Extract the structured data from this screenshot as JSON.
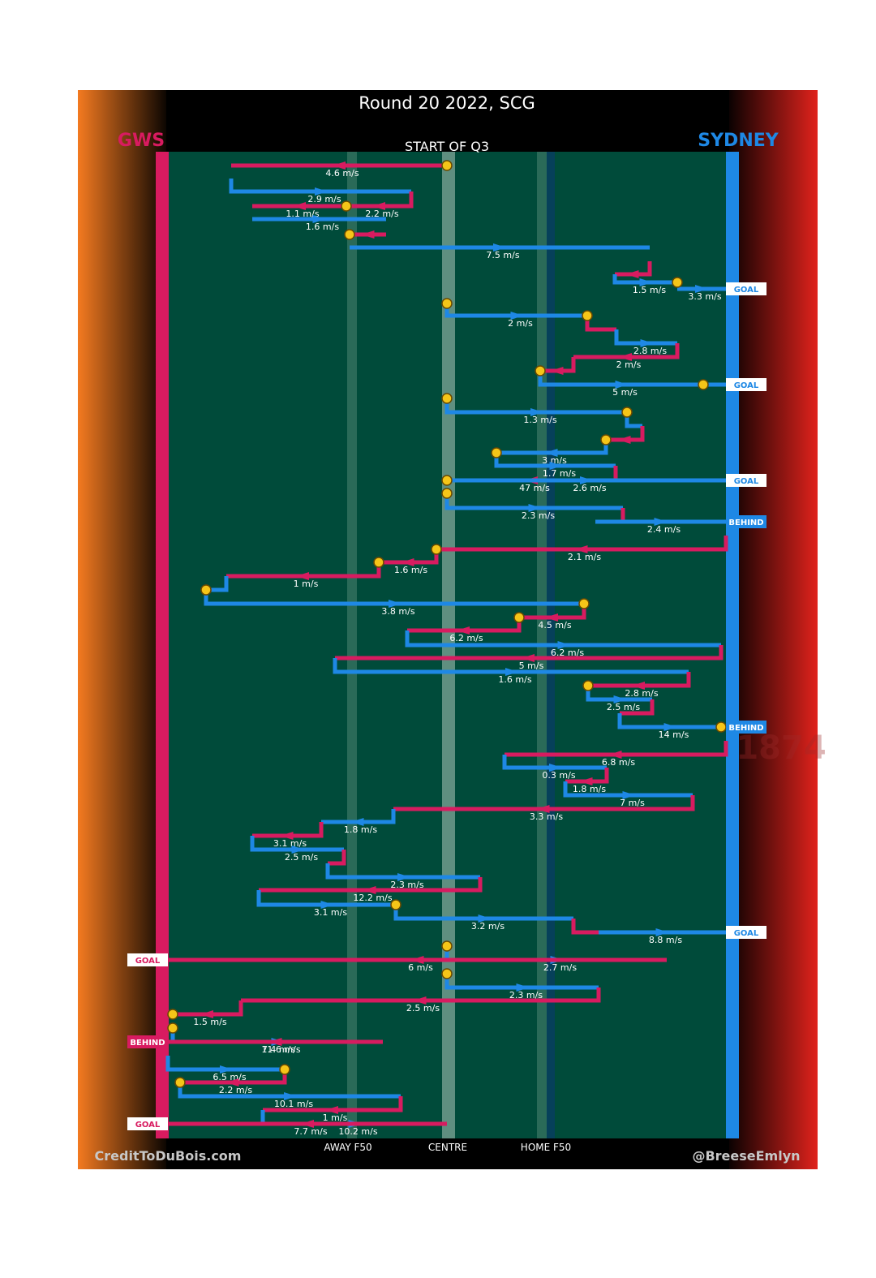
{
  "header": {
    "title": "Round 20 2022, SCG",
    "section_label": "START OF Q3",
    "away_team": "GWS",
    "home_team": "SYDNEY",
    "footer_left": "CreditToDuBois.com",
    "footer_right": "@BreeseEmlyn",
    "watermark_year": "1874"
  },
  "colors": {
    "away_team": "#d81b60",
    "home_team": "#1e88e5",
    "field": "#004b3a",
    "turnover_marker": "#f5c518",
    "result_label_bg": "#ffffff"
  },
  "chart_data": {
    "type": "line",
    "description_of_axes": "horizontal = field position from GWS goal (left) to Sydney goal (right); vertical = chain order, top to bottom",
    "x_ticks": [
      "AWAY F50",
      "CENTRE",
      "HOME F50"
    ],
    "segments": [
      {
        "team": "GWS",
        "y1": 204,
        "x1": 551,
        "y2": 204,
        "x2": 285,
        "speed": "4.6 m/s",
        "turnover_start": true
      },
      {
        "team": "SYD",
        "y1": 220,
        "x1": 285,
        "y2": 236,
        "x2": 507,
        "speed": "2.9 m/s"
      },
      {
        "team": "GWS",
        "y1": 236,
        "x1": 507,
        "y2": 254,
        "x2": 427,
        "speed": "2.2 m/s",
        "turnover_end": true
      },
      {
        "team": "GWS",
        "y1": 254,
        "x1": 427,
        "y2": 254,
        "x2": 311,
        "speed": "1.1 m/s"
      },
      {
        "team": "SYD",
        "y1": 270,
        "x1": 311,
        "y2": 270,
        "x2": 476,
        "speed": "1.6 m/s"
      },
      {
        "team": "GWS",
        "y1": 289,
        "x1": 476,
        "y2": 289,
        "x2": 431,
        "speed": "",
        "turnover_end": true
      },
      {
        "team": "SYD",
        "y1": 305,
        "x1": 431,
        "y2": 305,
        "x2": 801,
        "speed": "7.5 m/s"
      },
      {
        "team": "GWS",
        "y1": 322,
        "x1": 801,
        "y2": 338,
        "x2": 758,
        "speed": ""
      },
      {
        "team": "SYD",
        "y1": 338,
        "x1": 758,
        "y2": 348,
        "x2": 835,
        "speed": "1.5 m/s",
        "turnover_end": true
      },
      {
        "team": "SYD",
        "y1": 356,
        "x1": 835,
        "y2": 356,
        "x2": 895,
        "speed": "3.3 m/s",
        "result": "GOAL"
      },
      {
        "team": "SYD",
        "y1": 374,
        "x1": 551,
        "y2": 389,
        "x2": 724,
        "speed": "2 m/s",
        "turnover_start": true,
        "turnover_end": true
      },
      {
        "team": "GWS",
        "y1": 389,
        "x1": 724,
        "y2": 406,
        "x2": 760,
        "speed": ""
      },
      {
        "team": "SYD",
        "y1": 406,
        "x1": 760,
        "y2": 423,
        "x2": 835,
        "speed": "2.8 m/s"
      },
      {
        "team": "GWS",
        "y1": 423,
        "x1": 835,
        "y2": 440,
        "x2": 707,
        "speed": "2 m/s"
      },
      {
        "team": "GWS",
        "y1": 440,
        "x1": 707,
        "y2": 457,
        "x2": 666,
        "speed": "",
        "turnover_end": true
      },
      {
        "team": "SYD",
        "y1": 457,
        "x1": 666,
        "y2": 474,
        "x2": 867,
        "speed": "5 m/s",
        "turnover_end": true
      },
      {
        "team": "SYD",
        "y1": 474,
        "x1": 867,
        "y2": 474,
        "x2": 895,
        "speed": "",
        "result": "GOAL"
      },
      {
        "team": "SYD",
        "y1": 491,
        "x1": 551,
        "y2": 508,
        "x2": 773,
        "speed": "1.3 m/s",
        "turnover_start": true,
        "turnover_end": true
      },
      {
        "team": "SYD",
        "y1": 508,
        "x1": 773,
        "y2": 525,
        "x2": 792,
        "speed": ""
      },
      {
        "team": "GWS",
        "y1": 525,
        "x1": 792,
        "y2": 542,
        "x2": 747,
        "speed": "",
        "turnover_end": true
      },
      {
        "team": "SYD",
        "y1": 542,
        "x1": 747,
        "y2": 558,
        "x2": 612,
        "speed": "3 m/s"
      },
      {
        "team": "SYD",
        "y1": 558,
        "x1": 612,
        "y2": 574,
        "x2": 759,
        "speed": "1.7 m/s",
        "turnover_start": true
      },
      {
        "team": "GWS",
        "y1": 574,
        "x1": 759,
        "y2": 592,
        "x2": 551,
        "speed": "47 m/s",
        "turnover_end": true
      },
      {
        "team": "SYD",
        "y1": 592,
        "x1": 551,
        "y2": 592,
        "x2": 895,
        "speed": "2.6 m/s",
        "result": "GOAL"
      },
      {
        "team": "SYD",
        "y1": 608,
        "x1": 551,
        "y2": 626,
        "x2": 768,
        "speed": "2.3 m/s",
        "turnover_start": true
      },
      {
        "team": "GWS",
        "y1": 626,
        "x1": 768,
        "y2": 643,
        "x2": 734,
        "speed": ""
      },
      {
        "team": "SYD",
        "y1": 643,
        "x1": 734,
        "y2": 643,
        "x2": 895,
        "speed": "2.4 m/s",
        "result": "BEHIND"
      },
      {
        "team": "GWS",
        "y1": 660,
        "x1": 895,
        "y2": 677,
        "x2": 538,
        "speed": "2.1 m/s",
        "turnover_end": true
      },
      {
        "team": "GWS",
        "y1": 677,
        "x1": 538,
        "y2": 693,
        "x2": 467,
        "speed": "1.6 m/s",
        "turnover_end": true
      },
      {
        "team": "GWS",
        "y1": 693,
        "x1": 467,
        "y2": 710,
        "x2": 279,
        "speed": "1 m/s"
      },
      {
        "team": "SYD",
        "y1": 710,
        "x1": 279,
        "y2": 727,
        "x2": 254,
        "speed": "",
        "turnover_end": true
      },
      {
        "team": "SYD",
        "y1": 727,
        "x1": 254,
        "y2": 744,
        "x2": 720,
        "speed": "3.8 m/s",
        "turnover_start": true,
        "turnover_end": true
      },
      {
        "team": "GWS",
        "y1": 744,
        "x1": 720,
        "y2": 761,
        "x2": 640,
        "speed": "4.5 m/s",
        "turnover_end": true
      },
      {
        "team": "GWS",
        "y1": 761,
        "x1": 640,
        "y2": 777,
        "x2": 502,
        "speed": "6.2 m/s"
      },
      {
        "team": "SYD",
        "y1": 777,
        "x1": 502,
        "y2": 795,
        "x2": 889,
        "speed": "6.2 m/s"
      },
      {
        "team": "GWS",
        "y1": 795,
        "x1": 889,
        "y2": 811,
        "x2": 413,
        "speed": "5 m/s"
      },
      {
        "team": "SYD",
        "y1": 811,
        "x1": 413,
        "y2": 828,
        "x2": 849,
        "speed": "1.6 m/s"
      },
      {
        "team": "GWS",
        "y1": 828,
        "x1": 849,
        "y2": 845,
        "x2": 725,
        "speed": "2.8 m/s",
        "turnover_end": true
      },
      {
        "team": "SYD",
        "y1": 845,
        "x1": 725,
        "y2": 862,
        "x2": 804,
        "speed": "2.5 m/s"
      },
      {
        "team": "GWS",
        "y1": 862,
        "x1": 804,
        "y2": 879,
        "x2": 764,
        "speed": ""
      },
      {
        "team": "SYD",
        "y1": 879,
        "x1": 764,
        "y2": 896,
        "x2": 889,
        "speed": "14 m/s",
        "turnover_end": true
      },
      {
        "team": "SYD",
        "y1": 896,
        "x1": 889,
        "y2": 896,
        "x2": 895,
        "speed": "",
        "result": "BEHIND"
      },
      {
        "team": "GWS",
        "y1": 913,
        "x1": 895,
        "y2": 930,
        "x2": 622,
        "speed": "6.8 m/s"
      },
      {
        "team": "SYD",
        "y1": 930,
        "x1": 622,
        "y2": 946,
        "x2": 748,
        "speed": "0.3 m/s"
      },
      {
        "team": "GWS",
        "y1": 946,
        "x1": 748,
        "y2": 963,
        "x2": 697,
        "speed": "1.8 m/s"
      },
      {
        "team": "SYD",
        "y1": 963,
        "x1": 697,
        "y2": 980,
        "x2": 854,
        "speed": "7 m/s"
      },
      {
        "team": "GWS",
        "y1": 980,
        "x1": 854,
        "y2": 997,
        "x2": 485,
        "speed": "3.3 m/s"
      },
      {
        "team": "SYD",
        "y1": 997,
        "x1": 485,
        "y2": 1013,
        "x2": 396,
        "speed": "1.8 m/s"
      },
      {
        "team": "GWS",
        "y1": 1013,
        "x1": 396,
        "y2": 1030,
        "x2": 311,
        "speed": "3.1 m/s"
      },
      {
        "team": "SYD",
        "y1": 1030,
        "x1": 311,
        "y2": 1047,
        "x2": 424,
        "speed": "2.5 m/s"
      },
      {
        "team": "GWS",
        "y1": 1047,
        "x1": 424,
        "y2": 1064,
        "x2": 404,
        "speed": ""
      },
      {
        "team": "SYD",
        "y1": 1064,
        "x1": 404,
        "y2": 1081,
        "x2": 592,
        "speed": "2.3 m/s"
      },
      {
        "team": "GWS",
        "y1": 1081,
        "x1": 592,
        "y2": 1097,
        "x2": 319,
        "speed": "12.2 m/s"
      },
      {
        "team": "SYD",
        "y1": 1097,
        "x1": 319,
        "y2": 1115,
        "x2": 488,
        "speed": "3.1 m/s",
        "turnover_end": true
      },
      {
        "team": "SYD",
        "y1": 1115,
        "x1": 488,
        "y2": 1132,
        "x2": 707,
        "speed": "3.2 m/s"
      },
      {
        "team": "GWS",
        "y1": 1132,
        "x1": 707,
        "y2": 1149,
        "x2": 738,
        "speed": ""
      },
      {
        "team": "SYD",
        "y1": 1149,
        "x1": 738,
        "y2": 1149,
        "x2": 895,
        "speed": "8.8 m/s",
        "result": "GOAL"
      },
      {
        "team": "SYD",
        "y1": 1166,
        "x1": 551,
        "y2": 1183,
        "x2": 822,
        "speed": "2.7 m/s",
        "turnover_start": true
      },
      {
        "team": "GWS",
        "y1": 1183,
        "x1": 822,
        "y2": 1183,
        "x2": 207,
        "speed": "6 m/s",
        "result": "GOAL"
      },
      {
        "team": "SYD",
        "y1": 1200,
        "x1": 551,
        "y2": 1217,
        "x2": 738,
        "speed": "2.3 m/s",
        "turnover_start": true
      },
      {
        "team": "GWS",
        "y1": 1217,
        "x1": 738,
        "y2": 1233,
        "x2": 297,
        "speed": "2.5 m/s"
      },
      {
        "team": "GWS",
        "y1": 1233,
        "x1": 297,
        "y2": 1250,
        "x2": 213,
        "speed": "1.5 m/s",
        "turnover_end": true
      },
      {
        "team": "SYD",
        "y1": 1267,
        "x1": 213,
        "y2": 1284,
        "x2": 472,
        "speed": "11.6 m/s",
        "turnover_start": true
      },
      {
        "team": "GWS",
        "y1": 1284,
        "x1": 472,
        "y2": 1284,
        "x2": 207,
        "speed": "7.4 m/s",
        "result": "BEHIND"
      },
      {
        "team": "SYD",
        "y1": 1301,
        "x1": 207,
        "y2": 1318,
        "x2": 351,
        "speed": "6.5 m/s",
        "turnover_end": true
      },
      {
        "team": "GWS",
        "y1": 1318,
        "x1": 351,
        "y2": 1334,
        "x2": 222,
        "speed": "2.2 m/s",
        "turnover_end": true
      },
      {
        "team": "SYD",
        "y1": 1334,
        "x1": 222,
        "y2": 1351,
        "x2": 494,
        "speed": "10.1 m/s"
      },
      {
        "team": "GWS",
        "y1": 1351,
        "x1": 494,
        "y2": 1368,
        "x2": 324,
        "speed": "1 m/s"
      },
      {
        "team": "SYD",
        "y1": 1368,
        "x1": 324,
        "y2": 1385,
        "x2": 551,
        "speed": "10.2 m/s"
      },
      {
        "team": "GWS",
        "y1": 1385,
        "x1": 551,
        "y2": 1385,
        "x2": 207,
        "speed": "7.7 m/s",
        "result": "GOAL"
      }
    ]
  }
}
